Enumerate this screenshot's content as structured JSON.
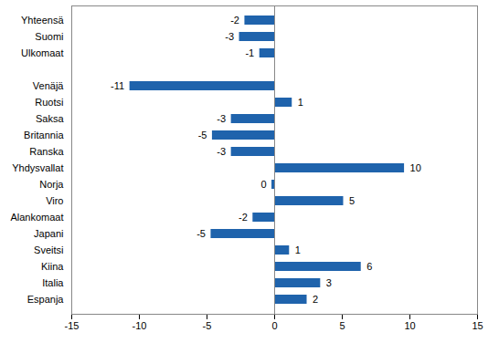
{
  "chart_data": {
    "type": "bar",
    "orientation": "horizontal",
    "categories": [
      "Yhteensä",
      "Suomi",
      "Ulkomaat",
      null,
      "Venäjä",
      "Ruotsi",
      "Saksa",
      "Britannia",
      "Ranska",
      "Yhdysvallat",
      "Norja",
      "Viro",
      "Alankomaat",
      "Japani",
      "Sveitsi",
      "Kiina",
      "Italia",
      "Espanja"
    ],
    "values": [
      -2.2,
      -2.6,
      -1.1,
      null,
      -10.7,
      1.3,
      -3.2,
      -4.6,
      -3.2,
      9.6,
      -0.2,
      5.1,
      -1.6,
      -4.7,
      1.1,
      6.4,
      3.4,
      2.4
    ],
    "value_labels": [
      "-2",
      "-3",
      "-1",
      null,
      "-11",
      "1",
      "-3",
      "-5",
      "-3",
      "10",
      "0",
      "5",
      "-2",
      "-5",
      "1",
      "6",
      "3",
      "2"
    ],
    "data_labels": true,
    "color": "#1f63ac",
    "xlim": [
      -15,
      15
    ],
    "xticks": [
      -15,
      -10,
      -5,
      0,
      5,
      10,
      15
    ],
    "grid": false
  }
}
